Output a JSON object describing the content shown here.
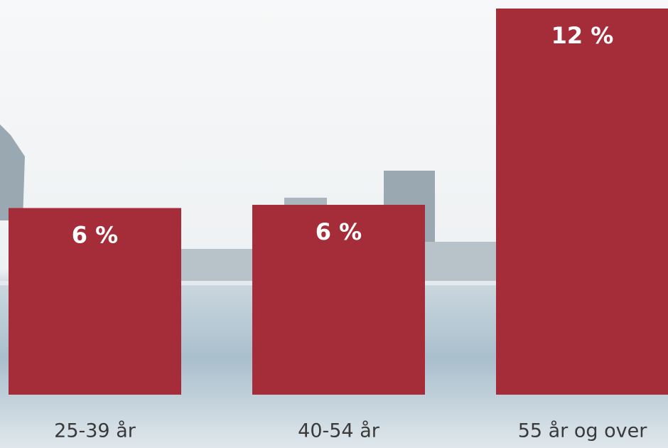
{
  "chart_data": {
    "type": "bar",
    "categories": [
      "25-39 år",
      "40-54 år",
      "55 år og over"
    ],
    "values": [
      5.8,
      5.9,
      12
    ],
    "value_labels": [
      "6 %",
      "6 %",
      "12 %"
    ],
    "color": "#a52d39"
  }
}
